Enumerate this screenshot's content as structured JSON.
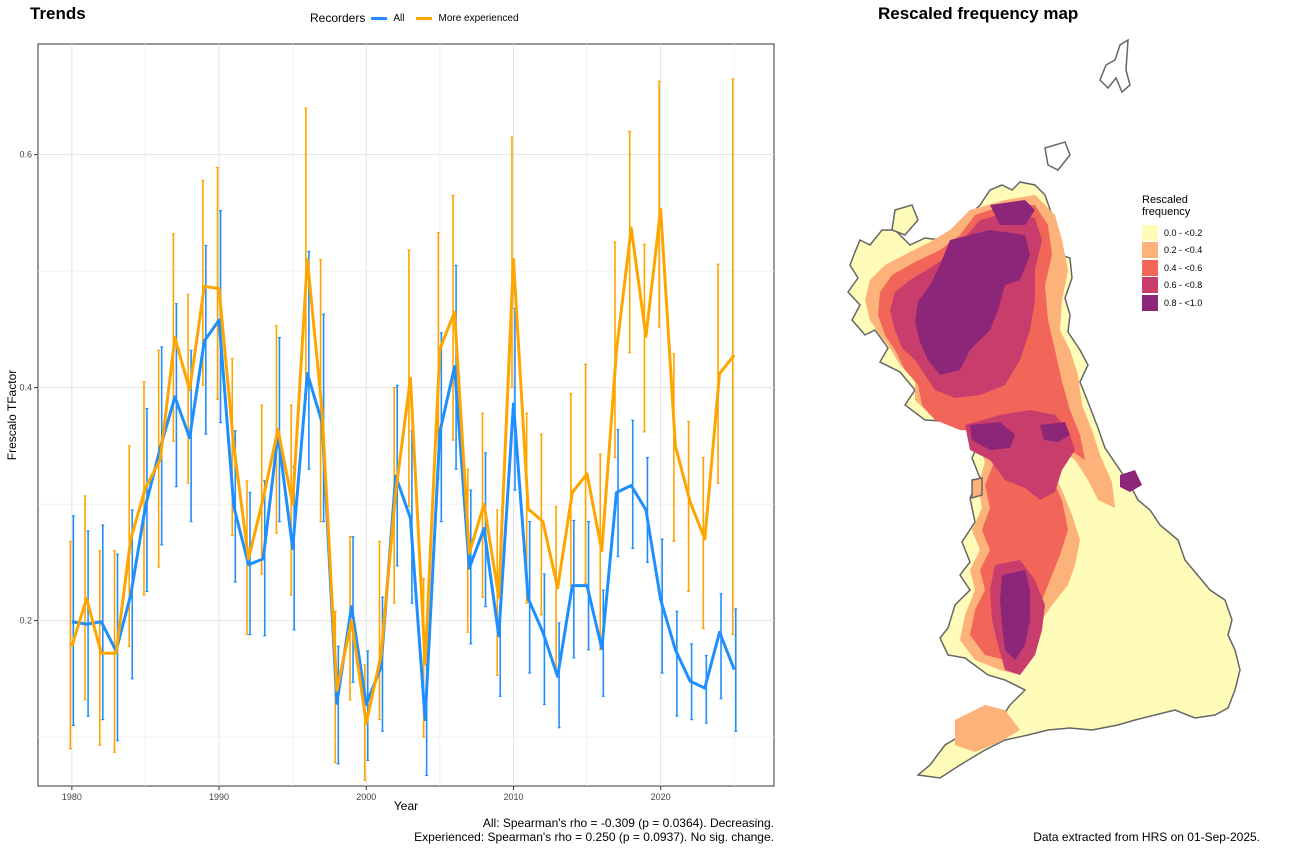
{
  "left_title": "Trends",
  "right_title": "Rescaled frequency map",
  "legend": {
    "title": "Recorders",
    "items": [
      {
        "label": "All",
        "color": "#1f8fff"
      },
      {
        "label": "More experienced",
        "color": "#ffa500"
      }
    ]
  },
  "captions": {
    "stats_line1": "All: Spearman's rho = -0.309 (p = 0.0364). Decreasing.",
    "stats_line2": "Experienced: Spearman's rho = 0.250 (p = 0.0937). No sig. change.",
    "source": "Data extracted from HRS on 01-Sep-2025."
  },
  "map_legend": {
    "title_line1": "Rescaled",
    "title_line2": "frequency",
    "items": [
      {
        "label": "0.0 - <0.2",
        "color": "#fffbb8"
      },
      {
        "label": "0.2 - <0.4",
        "color": "#fdb27a"
      },
      {
        "label": "0.4 - <0.6",
        "color": "#f2665a"
      },
      {
        "label": "0.6 - <0.8",
        "color": "#c83d6c"
      },
      {
        "label": "0.8 - <1.0",
        "color": "#8b2678"
      }
    ]
  },
  "chart_data": {
    "type": "line",
    "xlabel": "Year",
    "ylabel": "Frescalo TFactor",
    "xlim": [
      1977.7,
      2027.7
    ],
    "ylim": [
      0.058,
      0.695
    ],
    "xticks": [
      1980,
      1990,
      2000,
      2010,
      2020
    ],
    "yticks": [
      0.2,
      0.4,
      0.6
    ],
    "ytick_labels": [
      "0.2",
      "0.4",
      "0.6"
    ],
    "grid": true,
    "legend_position": "top",
    "x": [
      1980,
      1981,
      1982,
      1983,
      1984,
      1985,
      1986,
      1987,
      1988,
      1989,
      1990,
      1991,
      1992,
      1993,
      1994,
      1995,
      1996,
      1997,
      1998,
      1999,
      2000,
      2001,
      2002,
      2003,
      2004,
      2005,
      2006,
      2007,
      2008,
      2009,
      2010,
      2011,
      2012,
      2013,
      2014,
      2015,
      2016,
      2017,
      2018,
      2019,
      2020,
      2021,
      2022,
      2023,
      2024,
      2025
    ],
    "series": [
      {
        "name": "All",
        "color": "#1f8fff",
        "values": [
          0.199,
          0.197,
          0.199,
          0.174,
          0.222,
          0.298,
          0.348,
          0.392,
          0.357,
          0.44,
          0.458,
          0.298,
          0.248,
          0.253,
          0.36,
          0.262,
          0.412,
          0.37,
          0.129,
          0.212,
          0.128,
          0.16,
          0.324,
          0.288,
          0.115,
          0.362,
          0.418,
          0.245,
          0.279,
          0.187,
          0.386,
          0.219,
          0.19,
          0.152,
          0.23,
          0.23,
          0.176,
          0.31,
          0.316,
          0.295,
          0.218,
          0.175,
          0.148,
          0.142,
          0.19,
          0.158
        ],
        "lower": [
          0.11,
          0.118,
          0.115,
          0.097,
          0.15,
          0.225,
          0.265,
          0.315,
          0.285,
          0.36,
          0.37,
          0.233,
          0.188,
          0.187,
          0.285,
          0.192,
          0.33,
          0.285,
          0.077,
          0.147,
          0.08,
          0.105,
          0.247,
          0.215,
          0.067,
          0.285,
          0.33,
          0.18,
          0.212,
          0.135,
          0.312,
          0.155,
          0.128,
          0.108,
          0.168,
          0.175,
          0.135,
          0.255,
          0.262,
          0.25,
          0.155,
          0.118,
          0.115,
          0.112,
          0.133,
          0.105
        ],
        "upper": [
          0.29,
          0.277,
          0.282,
          0.257,
          0.295,
          0.382,
          0.435,
          0.472,
          0.432,
          0.522,
          0.552,
          0.363,
          0.31,
          0.32,
          0.443,
          0.332,
          0.517,
          0.463,
          0.178,
          0.272,
          0.174,
          0.22,
          0.402,
          0.363,
          0.162,
          0.447,
          0.505,
          0.312,
          0.344,
          0.237,
          0.468,
          0.285,
          0.24,
          0.198,
          0.286,
          0.285,
          0.226,
          0.364,
          0.372,
          0.34,
          0.27,
          0.208,
          0.18,
          0.17,
          0.223,
          0.21
        ]
      },
      {
        "name": "More experienced",
        "color": "#ffa500",
        "values": [
          0.178,
          0.219,
          0.172,
          0.172,
          0.27,
          0.314,
          0.338,
          0.443,
          0.398,
          0.487,
          0.485,
          0.35,
          0.253,
          0.305,
          0.364,
          0.3,
          0.51,
          0.38,
          0.14,
          0.2,
          0.112,
          0.17,
          0.31,
          0.408,
          0.163,
          0.433,
          0.465,
          0.258,
          0.3,
          0.22,
          0.51,
          0.296,
          0.285,
          0.228,
          0.31,
          0.326,
          0.26,
          0.432,
          0.537,
          0.444,
          0.553,
          0.35,
          0.302,
          0.27,
          0.412,
          0.428
        ],
        "lower": [
          0.09,
          0.132,
          0.093,
          0.087,
          0.178,
          0.222,
          0.246,
          0.354,
          0.318,
          0.402,
          0.39,
          0.273,
          0.188,
          0.24,
          0.275,
          0.222,
          0.39,
          0.285,
          0.078,
          0.132,
          0.063,
          0.115,
          0.215,
          0.298,
          0.1,
          0.322,
          0.355,
          0.19,
          0.22,
          0.153,
          0.4,
          0.215,
          0.205,
          0.155,
          0.23,
          0.232,
          0.175,
          0.34,
          0.43,
          0.362,
          0.452,
          0.268,
          0.225,
          0.193,
          0.318,
          0.188
        ],
        "upper": [
          0.268,
          0.307,
          0.26,
          0.26,
          0.35,
          0.405,
          0.432,
          0.532,
          0.48,
          0.578,
          0.589,
          0.425,
          0.32,
          0.385,
          0.453,
          0.385,
          0.64,
          0.51,
          0.208,
          0.272,
          0.162,
          0.268,
          0.4,
          0.518,
          0.236,
          0.533,
          0.565,
          0.33,
          0.378,
          0.295,
          0.615,
          0.378,
          0.36,
          0.298,
          0.395,
          0.42,
          0.343,
          0.525,
          0.62,
          0.523,
          0.663,
          0.429,
          0.371,
          0.34,
          0.506,
          0.665
        ]
      }
    ]
  }
}
